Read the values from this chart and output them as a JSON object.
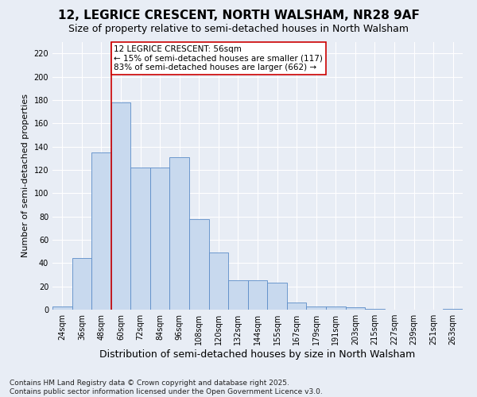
{
  "title1": "12, LEGRICE CRESCENT, NORTH WALSHAM, NR28 9AF",
  "title2": "Size of property relative to semi-detached houses in North Walsham",
  "xlabel": "Distribution of semi-detached houses by size in North Walsham",
  "ylabel": "Number of semi-detached properties",
  "categories": [
    "24sqm",
    "36sqm",
    "48sqm",
    "60sqm",
    "72sqm",
    "84sqm",
    "96sqm",
    "108sqm",
    "120sqm",
    "132sqm",
    "144sqm",
    "155sqm",
    "167sqm",
    "179sqm",
    "191sqm",
    "203sqm",
    "215sqm",
    "227sqm",
    "239sqm",
    "251sqm",
    "263sqm"
  ],
  "values": [
    3,
    44,
    135,
    178,
    122,
    122,
    131,
    78,
    49,
    25,
    25,
    23,
    6,
    3,
    3,
    2,
    1,
    0,
    0,
    0,
    1
  ],
  "bar_color": "#c8d9ee",
  "bar_edge_color": "#5b8cc8",
  "vline_x_idx": 3,
  "vline_color": "#cc0000",
  "annotation_text": "12 LEGRICE CRESCENT: 56sqm\n← 15% of semi-detached houses are smaller (117)\n83% of semi-detached houses are larger (662) →",
  "annotation_box_color": "white",
  "annotation_box_edge_color": "#cc0000",
  "ylim": [
    0,
    230
  ],
  "yticks": [
    0,
    20,
    40,
    60,
    80,
    100,
    120,
    140,
    160,
    180,
    200,
    220
  ],
  "background_color": "#e8edf5",
  "plot_bg_color": "#e8edf5",
  "footer_text": "Contains HM Land Registry data © Crown copyright and database right 2025.\nContains public sector information licensed under the Open Government Licence v3.0.",
  "title1_fontsize": 11,
  "title2_fontsize": 9,
  "xlabel_fontsize": 9,
  "ylabel_fontsize": 8,
  "tick_fontsize": 7,
  "annotation_fontsize": 7.5,
  "footer_fontsize": 6.5
}
